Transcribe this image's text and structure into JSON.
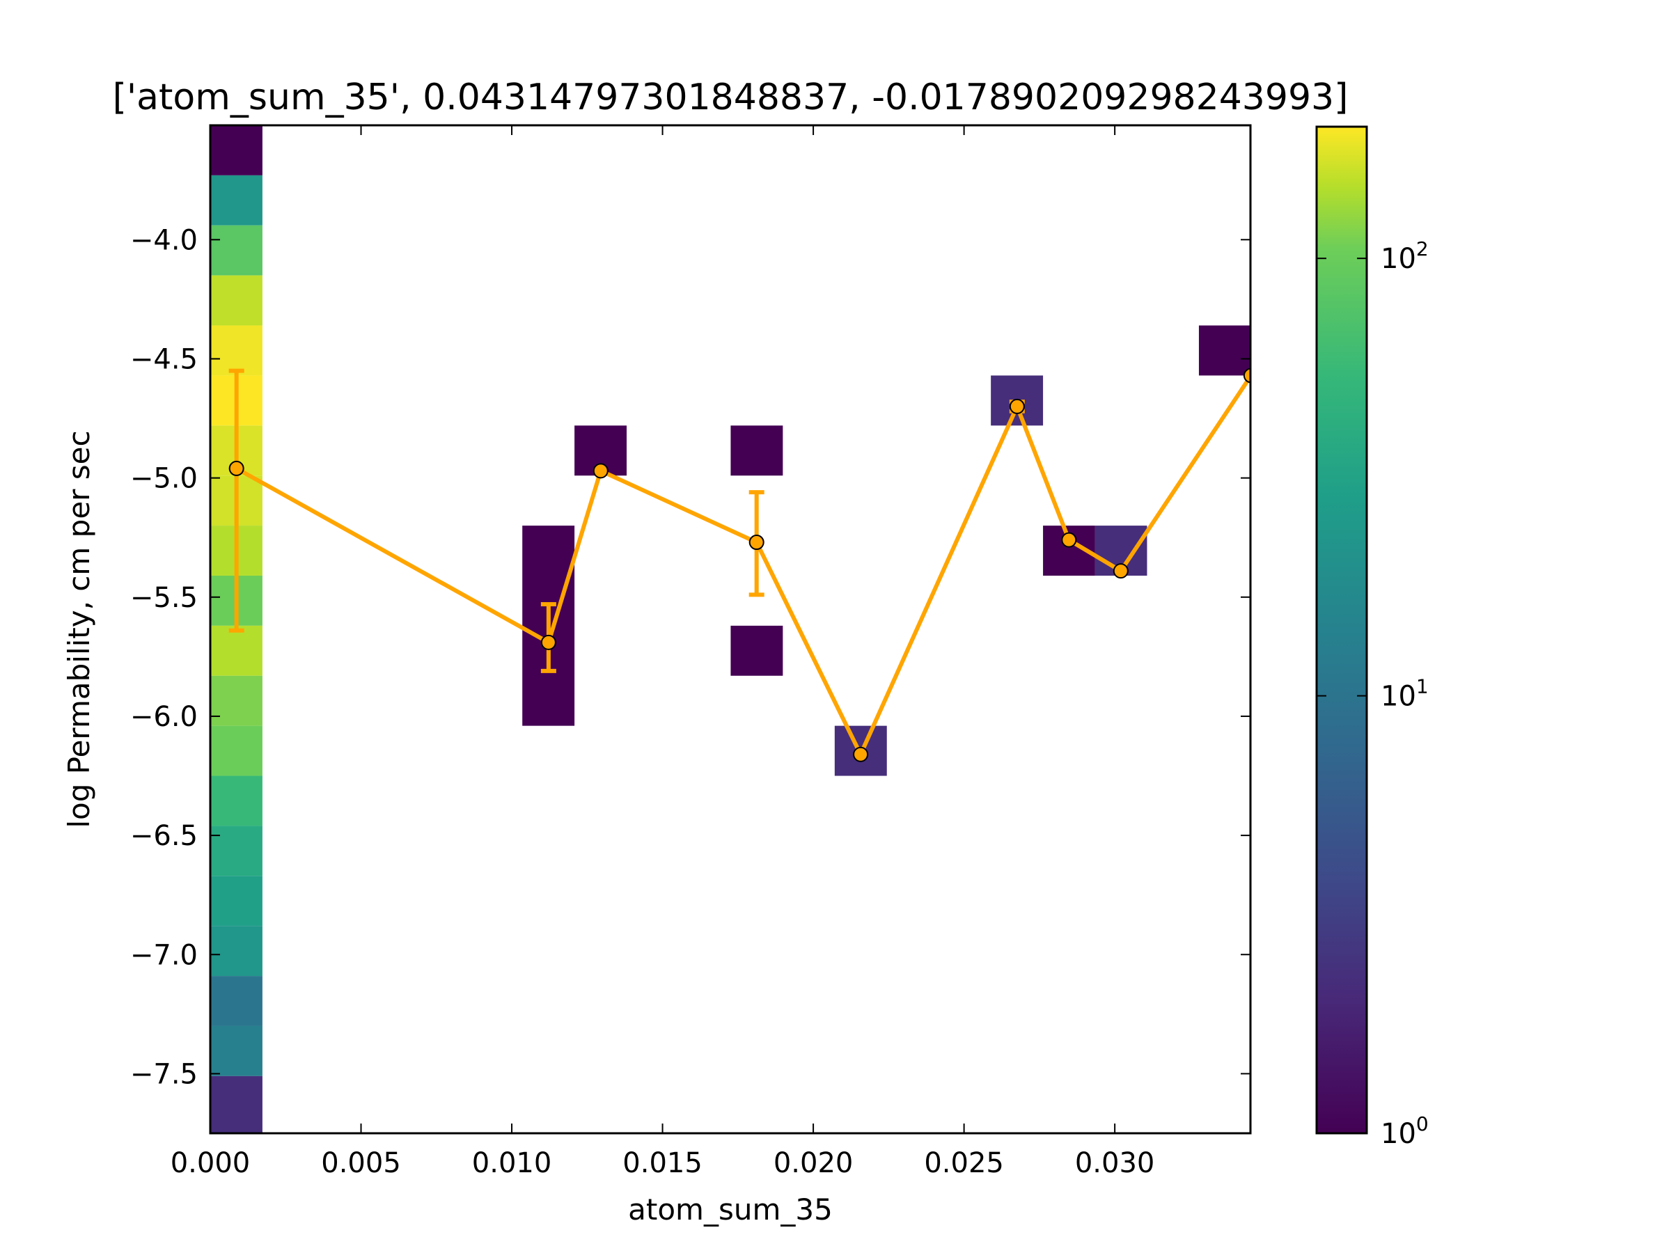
{
  "chart_data": {
    "type": "heatmap",
    "title": "['atom_sum_35', 0.04314797301848837, -0.017890209298243993]",
    "xlabel": "atom_sum_35",
    "ylabel": "log Permability, cm per sec",
    "xlim": [
      0.0,
      0.0345
    ],
    "ylim": [
      -7.75,
      -3.52
    ],
    "xticks": [
      {
        "value": 0.0,
        "label": "0.000"
      },
      {
        "value": 0.005,
        "label": "0.005"
      },
      {
        "value": 0.01,
        "label": "0.010"
      },
      {
        "value": 0.015,
        "label": "0.015"
      },
      {
        "value": 0.02,
        "label": "0.020"
      },
      {
        "value": 0.025,
        "label": "0.025"
      },
      {
        "value": 0.03,
        "label": "0.030"
      }
    ],
    "yticks": [
      {
        "value": -4.0,
        "label": "−4.0"
      },
      {
        "value": -4.5,
        "label": "−4.5"
      },
      {
        "value": -5.0,
        "label": "−5.0"
      },
      {
        "value": -5.5,
        "label": "−5.5"
      },
      {
        "value": -6.0,
        "label": "−6.0"
      },
      {
        "value": -6.5,
        "label": "−6.5"
      },
      {
        "value": -7.0,
        "label": "−7.0"
      },
      {
        "value": -7.5,
        "label": "−7.5"
      }
    ],
    "colormap": "viridis",
    "color_scale": "log",
    "color_range": [
      1,
      200
    ],
    "colorbar_ticks": [
      {
        "value": 1,
        "base": "10",
        "exp": "0"
      },
      {
        "value": 10,
        "base": "10",
        "exp": "1"
      },
      {
        "value": 100,
        "base": "10",
        "exp": "2"
      }
    ],
    "hist_cells": [
      {
        "x0": 0.0,
        "x1": 0.00173,
        "y0": -3.73,
        "y1": -3.52,
        "count": 1
      },
      {
        "x0": 0.0,
        "x1": 0.00173,
        "y0": -3.94,
        "y1": -3.73,
        "count": 16
      },
      {
        "x0": 0.0,
        "x1": 0.00173,
        "y0": -4.15,
        "y1": -3.94,
        "count": 50
      },
      {
        "x0": 0.0,
        "x1": 0.00173,
        "y0": -4.36,
        "y1": -4.15,
        "count": 120
      },
      {
        "x0": 0.0,
        "x1": 0.00173,
        "y0": -4.57,
        "y1": -4.36,
        "count": 180
      },
      {
        "x0": 0.0,
        "x1": 0.00173,
        "y0": -4.78,
        "y1": -4.57,
        "count": 200
      },
      {
        "x0": 0.0,
        "x1": 0.00173,
        "y0": -4.99,
        "y1": -4.78,
        "count": 150
      },
      {
        "x0": 0.0,
        "x1": 0.00173,
        "y0": -5.2,
        "y1": -4.99,
        "count": 140
      },
      {
        "x0": 0.0,
        "x1": 0.00173,
        "y0": -5.41,
        "y1": -5.2,
        "count": 110
      },
      {
        "x0": 0.0,
        "x1": 0.00173,
        "y0": -5.62,
        "y1": -5.41,
        "count": 60
      },
      {
        "x0": 0.0,
        "x1": 0.00173,
        "y0": -5.83,
        "y1": -5.62,
        "count": 110
      },
      {
        "x0": 0.0,
        "x1": 0.00173,
        "y0": -6.04,
        "y1": -5.83,
        "count": 70
      },
      {
        "x0": 0.0,
        "x1": 0.00173,
        "y0": -6.25,
        "y1": -6.04,
        "count": 60
      },
      {
        "x0": 0.0,
        "x1": 0.00173,
        "y0": -6.46,
        "y1": -6.25,
        "count": 35
      },
      {
        "x0": 0.0,
        "x1": 0.00173,
        "y0": -6.67,
        "y1": -6.46,
        "count": 25
      },
      {
        "x0": 0.0,
        "x1": 0.00173,
        "y0": -6.88,
        "y1": -6.67,
        "count": 20
      },
      {
        "x0": 0.0,
        "x1": 0.00173,
        "y0": -7.09,
        "y1": -6.88,
        "count": 16
      },
      {
        "x0": 0.0,
        "x1": 0.00173,
        "y0": -7.3,
        "y1": -7.09,
        "count": 8
      },
      {
        "x0": 0.0,
        "x1": 0.00173,
        "y0": -7.51,
        "y1": -7.3,
        "count": 10
      },
      {
        "x0": 0.0,
        "x1": 0.00173,
        "y0": -7.75,
        "y1": -7.51,
        "count": 2
      },
      {
        "x0": 0.01035,
        "x1": 0.01208,
        "y0": -6.04,
        "y1": -5.2,
        "count": 1
      },
      {
        "x0": 0.01208,
        "x1": 0.01381,
        "y0": -4.99,
        "y1": -4.78,
        "count": 1
      },
      {
        "x0": 0.01726,
        "x1": 0.01899,
        "y0": -4.99,
        "y1": -4.78,
        "count": 1
      },
      {
        "x0": 0.01726,
        "x1": 0.01899,
        "y0": -5.83,
        "y1": -5.62,
        "count": 1
      },
      {
        "x0": 0.02071,
        "x1": 0.02244,
        "y0": -6.25,
        "y1": -6.04,
        "count": 2
      },
      {
        "x0": 0.02589,
        "x1": 0.02762,
        "y0": -4.78,
        "y1": -4.57,
        "count": 2
      },
      {
        "x0": 0.02762,
        "x1": 0.02934,
        "y0": -5.41,
        "y1": -5.2,
        "count": 1
      },
      {
        "x0": 0.02934,
        "x1": 0.03107,
        "y0": -5.41,
        "y1": -5.2,
        "count": 2
      },
      {
        "x0": 0.03279,
        "x1": 0.03452,
        "y0": -4.57,
        "y1": -4.36,
        "count": 1
      }
    ],
    "series": [
      {
        "color": "#ffa500",
        "points": [
          {
            "x": 0.00087,
            "y": -4.96,
            "yerr_low": -5.64,
            "yerr_high": -4.55
          },
          {
            "x": 0.01122,
            "y": -5.69,
            "yerr_low": -5.81,
            "yerr_high": -5.53
          },
          {
            "x": 0.01295,
            "y": -4.97
          },
          {
            "x": 0.01812,
            "y": -5.27,
            "yerr_low": -5.49,
            "yerr_high": -5.06
          },
          {
            "x": 0.02157,
            "y": -6.16
          },
          {
            "x": 0.02676,
            "y": -4.7,
            "yerr_low": -4.72,
            "yerr_high": -4.68
          },
          {
            "x": 0.02848,
            "y": -5.26
          },
          {
            "x": 0.0302,
            "y": -5.39
          },
          {
            "x": 0.03452,
            "y": -4.57
          }
        ]
      }
    ]
  }
}
